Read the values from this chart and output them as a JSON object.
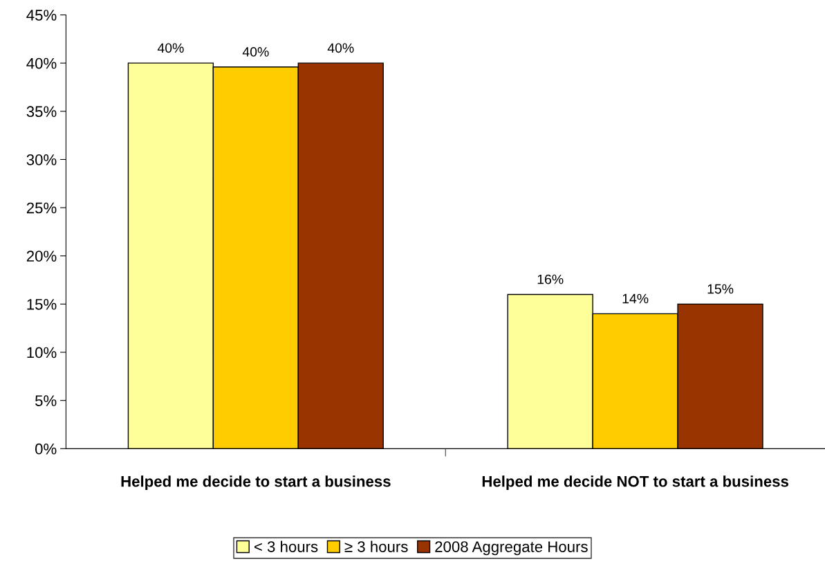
{
  "chart_data": {
    "type": "bar",
    "categories": [
      "Helped me decide to start a business",
      "Helped me decide NOT to start a business"
    ],
    "series": [
      {
        "name": "< 3 hours",
        "color": "#ffff99",
        "values": [
          40,
          16
        ],
        "value_labels": [
          "40%",
          "16%"
        ]
      },
      {
        "name": "≥ 3 hours",
        "color": "#ffcc00",
        "values": [
          39.6,
          14
        ],
        "value_labels": [
          "40%",
          "14%"
        ]
      },
      {
        "name": "2008 Aggregate Hours",
        "color": "#993300",
        "values": [
          40,
          15
        ],
        "value_labels": [
          "40%",
          "15%"
        ]
      }
    ],
    "ylim": [
      0,
      45
    ],
    "yticks": [
      {
        "value": 0,
        "label": "0%"
      },
      {
        "value": 5,
        "label": "5%"
      },
      {
        "value": 10,
        "label": "10%"
      },
      {
        "value": 15,
        "label": "15%"
      },
      {
        "value": 20,
        "label": "20%"
      },
      {
        "value": 25,
        "label": "25%"
      },
      {
        "value": 30,
        "label": "30%"
      },
      {
        "value": 35,
        "label": "35%"
      },
      {
        "value": 40,
        "label": "40%"
      },
      {
        "value": 45,
        "label": "45%"
      }
    ],
    "grid": false,
    "legend": "bottom"
  }
}
